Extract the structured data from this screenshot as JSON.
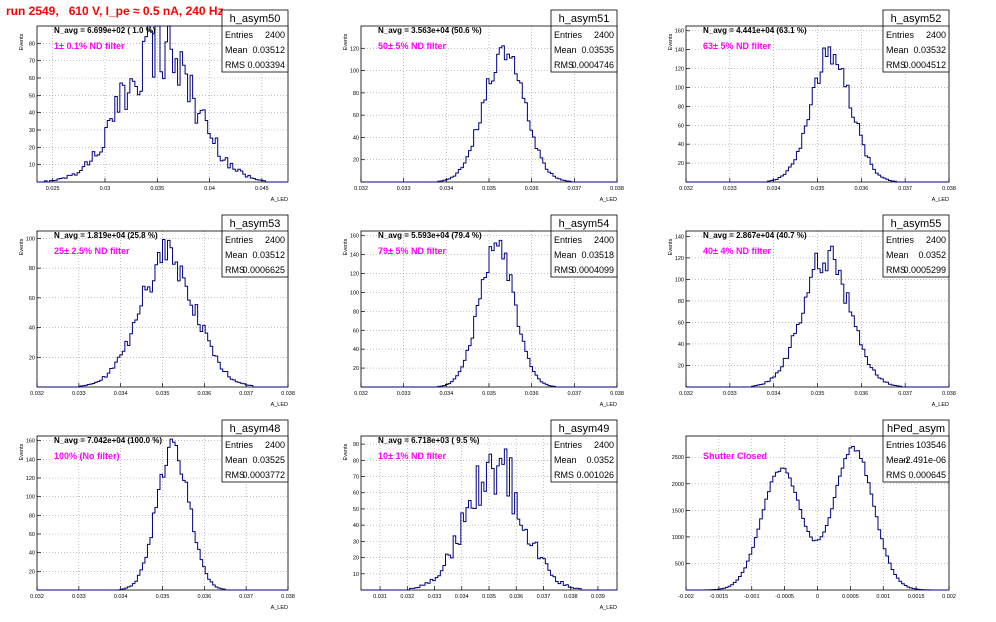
{
  "run_title": "run 2549,   610 V, I_pe ≈ 0.5 nA, 240 Hz",
  "colors": {
    "hist": "#000080",
    "title": "#ff0000",
    "annotation": "#ff00ff",
    "axis": "#000000",
    "grid": "#999999"
  },
  "chart_data": [
    {
      "type": "histogram",
      "name": "h_asym50",
      "stats": {
        "entries_label": "Entries",
        "entries": "2400",
        "mean_label": "Mean",
        "mean": "0.03512",
        "rms_label": "RMS",
        "rms": "0.003394"
      },
      "navg_text": "N_avg = 6.699e+02 ( 1.0 %)",
      "annotation": "1± 0.1% ND filter",
      "xlabel": "A_LED",
      "ylabel": "Events",
      "xlim": [
        0.0235,
        0.0475
      ],
      "ylim": [
        0,
        90
      ],
      "xticks": [
        0.025,
        0.03,
        0.035,
        0.04,
        0.045
      ],
      "xtick_labels": [
        "0.025",
        "0.03",
        "0.035",
        "0.04",
        "0.045"
      ],
      "yticks": [
        10,
        20,
        30,
        40,
        50,
        60,
        70,
        80
      ],
      "grid": true,
      "profile": {
        "type": "gauss",
        "mu": 0.03512,
        "sigma": 0.003394,
        "peak": 80,
        "noise": 0.28
      }
    },
    {
      "type": "histogram",
      "name": "h_asym51",
      "stats": {
        "entries_label": "Entries",
        "entries": "2400",
        "mean_label": "Mean",
        "mean": "0.03535",
        "rms_label": "RMS",
        "rms": "0.0004746"
      },
      "navg_text": "N_avg = 3.563e+04 (50.6 %)",
      "annotation": "50± 5% ND filter",
      "xlabel": "A_LED",
      "ylabel": "Events",
      "xlim": [
        0.032,
        0.038
      ],
      "ylim": [
        0,
        140
      ],
      "xticks": [
        0.032,
        0.033,
        0.034,
        0.035,
        0.036,
        0.037,
        0.038
      ],
      "xtick_labels": [
        "0.032",
        "0.033",
        "0.034",
        "0.035",
        "0.036",
        "0.037",
        "0.038"
      ],
      "yticks": [
        20,
        40,
        60,
        80,
        100,
        120
      ],
      "grid": true,
      "profile": {
        "type": "gauss",
        "mu": 0.03535,
        "sigma": 0.0004746,
        "peak": 118,
        "noise": 0.12
      }
    },
    {
      "type": "histogram",
      "name": "h_asym52",
      "stats": {
        "entries_label": "Entries",
        "entries": "2400",
        "mean_label": "Mean",
        "mean": "0.03532",
        "rms_label": "RMS",
        "rms": "0.0004512"
      },
      "navg_text": "N_avg = 4.441e+04 (63.1 %)",
      "annotation": "63± 5% ND filter",
      "xlabel": "A_LED",
      "ylabel": "Events",
      "xlim": [
        0.032,
        0.038
      ],
      "ylim": [
        0,
        165
      ],
      "xticks": [
        0.032,
        0.033,
        0.034,
        0.035,
        0.036,
        0.037,
        0.038
      ],
      "xtick_labels": [
        "0.032",
        "0.033",
        "0.034",
        "0.035",
        "0.036",
        "0.037",
        "0.038"
      ],
      "yticks": [
        20,
        40,
        60,
        80,
        100,
        120,
        140,
        160
      ],
      "grid": true,
      "profile": {
        "type": "gauss",
        "mu": 0.03532,
        "sigma": 0.0004512,
        "peak": 138,
        "noise": 0.12
      }
    },
    {
      "type": "histogram",
      "name": "h_asym53",
      "stats": {
        "entries_label": "Entries",
        "entries": "2400",
        "mean_label": "Mean",
        "mean": "0.03512",
        "rms_label": "RMS",
        "rms": "0.0006625"
      },
      "navg_text": "N_avg = 1.819e+04 (25.8 %)",
      "annotation": "25± 2.5% ND filter",
      "xlabel": "A_LED",
      "ylabel": "Events",
      "xlim": [
        0.032,
        0.038
      ],
      "ylim": [
        0,
        105
      ],
      "xticks": [
        0.032,
        0.033,
        0.034,
        0.035,
        0.036,
        0.037,
        0.038
      ],
      "xtick_labels": [
        "0.032",
        "0.033",
        "0.034",
        "0.035",
        "0.036",
        "0.037",
        "0.038"
      ],
      "yticks": [
        20,
        40,
        60,
        80,
        100
      ],
      "grid": true,
      "profile": {
        "type": "gauss",
        "mu": 0.03512,
        "sigma": 0.0006625,
        "peak": 88,
        "noise": 0.16
      }
    },
    {
      "type": "histogram",
      "name": "h_asym54",
      "stats": {
        "entries_label": "Entries",
        "entries": "2400",
        "mean_label": "Mean",
        "mean": "0.03518",
        "rms_label": "RMS",
        "rms": "0.0004099"
      },
      "navg_text": "N_avg = 5.593e+04 (79.4 %)",
      "annotation": "79± 5% ND filter",
      "xlabel": "A_LED",
      "ylabel": "Events",
      "xlim": [
        0.032,
        0.038
      ],
      "ylim": [
        0,
        165
      ],
      "xticks": [
        0.032,
        0.033,
        0.034,
        0.035,
        0.036,
        0.037,
        0.038
      ],
      "xtick_labels": [
        "0.032",
        "0.033",
        "0.034",
        "0.035",
        "0.036",
        "0.037",
        "0.038"
      ],
      "yticks": [
        20,
        40,
        60,
        80,
        100,
        120,
        140,
        160
      ],
      "grid": true,
      "profile": {
        "type": "gauss",
        "mu": 0.03518,
        "sigma": 0.0004099,
        "peak": 150,
        "noise": 0.1
      }
    },
    {
      "type": "histogram",
      "name": "h_asym55",
      "stats": {
        "entries_label": "Entries",
        "entries": "2400",
        "mean_label": "Mean",
        "mean": "0.0352",
        "rms_label": "RMS",
        "rms": "0.0005299"
      },
      "navg_text": "N_avg = 2.867e+04 (40.7 %)",
      "annotation": "40± 4% ND filter",
      "xlabel": "A_LED",
      "ylabel": "Events",
      "xlim": [
        0.032,
        0.038
      ],
      "ylim": [
        0,
        145
      ],
      "xticks": [
        0.032,
        0.033,
        0.034,
        0.035,
        0.036,
        0.037,
        0.038
      ],
      "xtick_labels": [
        "0.032",
        "0.033",
        "0.034",
        "0.035",
        "0.036",
        "0.037",
        "0.038"
      ],
      "yticks": [
        20,
        40,
        60,
        80,
        100,
        120,
        140
      ],
      "grid": true,
      "profile": {
        "type": "gauss",
        "mu": 0.0352,
        "sigma": 0.0005299,
        "peak": 122,
        "noise": 0.13
      }
    },
    {
      "type": "histogram",
      "name": "h_asym48",
      "stats": {
        "entries_label": "Entries",
        "entries": "2400",
        "mean_label": "Mean",
        "mean": "0.03525",
        "rms_label": "RMS",
        "rms": "0.0003772"
      },
      "navg_text": "N_avg = 7.042e+04 (100.0 %)",
      "annotation": "100% (No filter)",
      "xlabel": "A_LED",
      "ylabel": "Events",
      "xlim": [
        0.032,
        0.038
      ],
      "ylim": [
        0,
        165
      ],
      "xticks": [
        0.032,
        0.033,
        0.034,
        0.035,
        0.036,
        0.037,
        0.038
      ],
      "xtick_labels": [
        "0.032",
        "0.033",
        "0.034",
        "0.035",
        "0.036",
        "0.037",
        "0.038"
      ],
      "yticks": [
        20,
        40,
        60,
        80,
        100,
        120,
        140,
        160
      ],
      "grid": true,
      "profile": {
        "type": "gauss",
        "mu": 0.03525,
        "sigma": 0.0003772,
        "peak": 158,
        "noise": 0.1
      }
    },
    {
      "type": "histogram",
      "name": "h_asym49",
      "stats": {
        "entries_label": "Entries",
        "entries": "2400",
        "mean_label": "Mean",
        "mean": "0.0352",
        "rms_label": "RMS",
        "rms": "0.001026"
      },
      "navg_text": "N_avg = 6.718e+03 ( 9.5 %)",
      "annotation": "10± 1% ND filter",
      "xlabel": "A_LED",
      "ylabel": "Events",
      "xlim": [
        0.0303,
        0.0397
      ],
      "ylim": [
        0,
        95
      ],
      "xticks": [
        0.031,
        0.032,
        0.033,
        0.034,
        0.035,
        0.036,
        0.037,
        0.038,
        0.039
      ],
      "xtick_labels": [
        "0.031",
        "0.032",
        "0.033",
        "0.034",
        "0.035",
        "0.036",
        "0.037",
        "0.038",
        "0.039"
      ],
      "yticks": [
        10,
        20,
        30,
        40,
        50,
        60,
        70,
        80,
        90
      ],
      "grid": true,
      "profile": {
        "type": "gauss",
        "mu": 0.0352,
        "sigma": 0.001026,
        "peak": 78,
        "noise": 0.25
      }
    },
    {
      "type": "histogram",
      "name": "hPed_asym",
      "stats": {
        "entries_label": "Entries",
        "entries": "103546",
        "mean_label": "Mean",
        "mean": "-2.491e-06",
        "rms_label": "RMS",
        "rms": "0.000645"
      },
      "navg_text": "",
      "annotation": "Shutter Closed",
      "xlabel": "",
      "ylabel": "",
      "xlim": [
        -0.002,
        0.002
      ],
      "ylim": [
        0,
        2900
      ],
      "xticks": [
        -0.002,
        -0.0015,
        -0.001,
        -0.0005,
        0,
        0.0005,
        0.001,
        0.0015,
        0.002
      ],
      "xtick_labels": [
        "-0.002",
        "-0.0015",
        "-0.001",
        "-0.0005",
        "0",
        "0.0005",
        "0.001",
        "0.0015",
        "0.002"
      ],
      "yticks": [
        500,
        1000,
        1500,
        2000,
        2500
      ],
      "grid": true,
      "profile": {
        "type": "double-gauss",
        "mu1": -0.00055,
        "mu2": 0.00055,
        "sigma": 0.0003,
        "peak1": 2280,
        "peak2": 2680,
        "noise": 0.02
      }
    }
  ]
}
